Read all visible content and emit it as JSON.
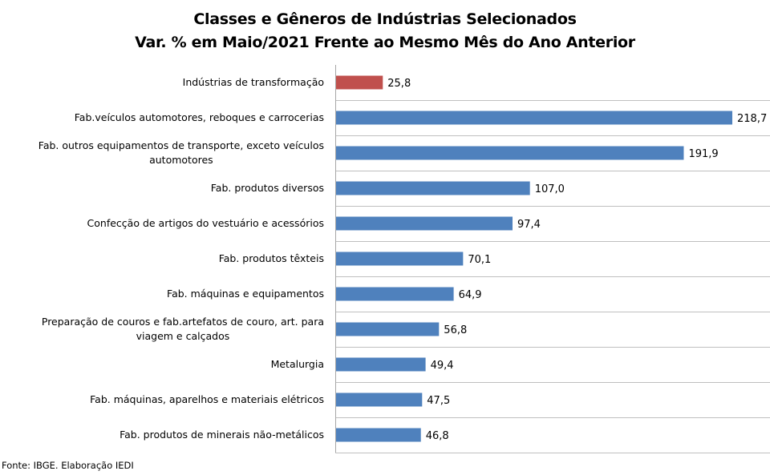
{
  "chart_data": {
    "type": "bar",
    "orientation": "horizontal",
    "title": "Classes e Gêneros de Indústrias Selecionados",
    "subtitle": "Var. % em Maio/2021 Frente ao Mesmo Mês do Ano Anterior",
    "categories": [
      "Indústrias de transformação",
      "Fab.veículos automotores, reboques e carrocerias",
      "Fab. outros equipamentos de transporte, exceto veículos automotores",
      "Fab. produtos diversos",
      "Confecção de artigos do vestuário e acessórios",
      "Fab. produtos têxteis",
      "Fab. máquinas e equipamentos",
      "Preparação de couros e fab.artefatos de couro, art. para viagem e calçados",
      "Metalurgia",
      "Fab. máquinas, aparelhos e materiais elétricos",
      "Fab. produtos de minerais não-metálicos"
    ],
    "category_lines": [
      [
        "Indústrias de transformação"
      ],
      [
        "Fab.veículos automotores, reboques e carrocerias"
      ],
      [
        "Fab. outros equipamentos de transporte, exceto veículos",
        "automotores"
      ],
      [
        "Fab. produtos diversos"
      ],
      [
        "Confecção de artigos do vestuário e acessórios"
      ],
      [
        "Fab. produtos têxteis"
      ],
      [
        "Fab. máquinas e equipamentos"
      ],
      [
        "Preparação de couros e fab.artefatos de couro, art. para",
        "viagem e calçados"
      ],
      [
        "Metalurgia"
      ],
      [
        "Fab. máquinas, aparelhos e materiais elétricos"
      ],
      [
        "Fab. produtos de minerais não-metálicos"
      ]
    ],
    "values": [
      25.8,
      218.7,
      191.9,
      107.0,
      97.4,
      70.1,
      64.9,
      56.8,
      49.4,
      47.5,
      46.8
    ],
    "labels": [
      "25,8",
      "218,7",
      "191,9",
      "107,0",
      "97,4",
      "70,1",
      "64,9",
      "56,8",
      "49,4",
      "47,5",
      "46,8"
    ],
    "colors": [
      "#C0504D",
      "#4F81BD",
      "#4F81BD",
      "#4F81BD",
      "#4F81BD",
      "#4F81BD",
      "#4F81BD",
      "#4F81BD",
      "#4F81BD",
      "#4F81BD",
      "#4F81BD"
    ],
    "xlim": [
      0,
      240
    ],
    "xlabel": "",
    "ylabel": "",
    "grid": true,
    "legend": "none"
  },
  "source": "Fonte: IBGE. Elaboração IEDI"
}
